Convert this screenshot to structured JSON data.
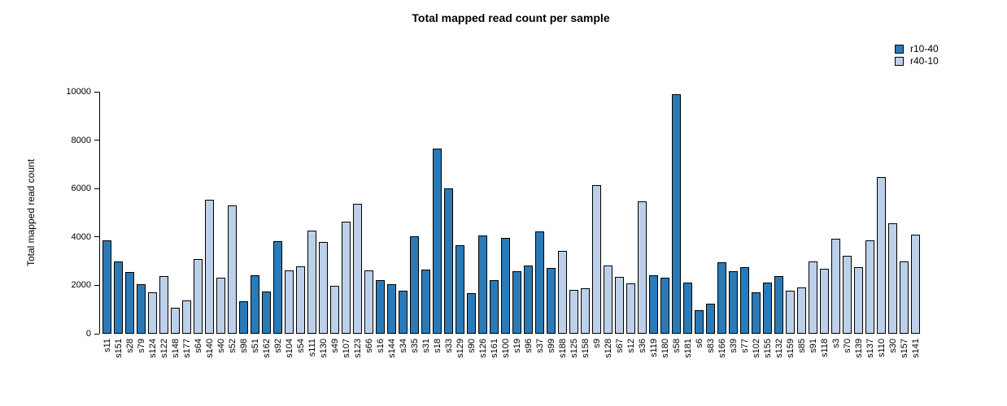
{
  "chart_data": {
    "type": "bar",
    "title": "Total mapped read count per sample",
    "ylabel": "Total mapped read count",
    "xlabel": "",
    "ylim": [
      0,
      10000
    ],
    "yticks": [
      0,
      2000,
      4000,
      6000,
      8000,
      10000
    ],
    "grid": false,
    "legend_position": "top-right",
    "series": [
      {
        "name": "r10-40",
        "color": "#2b7ab8"
      },
      {
        "name": "r40-10",
        "color": "#bcd0ea"
      }
    ],
    "bar_stroke_color": "#000000",
    "categories": [
      "s11",
      "s151",
      "s28",
      "s79",
      "s124",
      "s122",
      "s148",
      "s177",
      "s64",
      "s140",
      "s40",
      "s52",
      "s98",
      "s51",
      "s162",
      "s92",
      "s104",
      "s54",
      "s111",
      "s130",
      "s49",
      "s107",
      "s123",
      "s66",
      "s16",
      "s144",
      "s34",
      "s35",
      "s31",
      "s18",
      "s33",
      "s129",
      "s90",
      "s126",
      "s161",
      "s100",
      "s19",
      "s96",
      "s37",
      "s99",
      "s188",
      "s125",
      "s158",
      "s9",
      "s128",
      "s67",
      "s12",
      "s36",
      "s119",
      "s180",
      "s58",
      "s181",
      "s6",
      "s83",
      "s166",
      "s39",
      "s77",
      "s102",
      "s155",
      "s132",
      "s159",
      "s85",
      "s91",
      "s118",
      "s3",
      "s70",
      "s139",
      "s137",
      "s110",
      "s30",
      "s157",
      "s141"
    ],
    "values": [
      3870,
      2970,
      2550,
      2060,
      1700,
      2370,
      1060,
      1390,
      3090,
      5540,
      2300,
      5290,
      1340,
      2410,
      1740,
      3840,
      2620,
      2790,
      4260,
      3790,
      1980,
      4630,
      5380,
      2610,
      2230,
      2060,
      1790,
      4040,
      2650,
      7640,
      6010,
      3670,
      1680,
      4070,
      2210,
      3950,
      2600,
      2810,
      4240,
      2710,
      3410,
      1800,
      1880,
      6130,
      2830,
      2340,
      2070,
      5460,
      2420,
      2330,
      9890,
      2100,
      960,
      1230,
      2940,
      2570,
      2740,
      1720,
      2120,
      2380,
      1790,
      1910,
      2970,
      2670,
      3910,
      3210,
      2760,
      3870,
      6460,
      4550,
      2990,
      4110
    ],
    "bar_series": [
      "r10-40",
      "r10-40",
      "r10-40",
      "r10-40",
      "r40-10",
      "r40-10",
      "r40-10",
      "r40-10",
      "r40-10",
      "r40-10",
      "r40-10",
      "r40-10",
      "r10-40",
      "r10-40",
      "r10-40",
      "r10-40",
      "r40-10",
      "r40-10",
      "r40-10",
      "r40-10",
      "r40-10",
      "r40-10",
      "r40-10",
      "r40-10",
      "r10-40",
      "r10-40",
      "r10-40",
      "r10-40",
      "r10-40",
      "r10-40",
      "r10-40",
      "r10-40",
      "r10-40",
      "r10-40",
      "r10-40",
      "r10-40",
      "r10-40",
      "r10-40",
      "r10-40",
      "r10-40",
      "r40-10",
      "r40-10",
      "r40-10",
      "r40-10",
      "r40-10",
      "r40-10",
      "r40-10",
      "r40-10",
      "r10-40",
      "r10-40",
      "r10-40",
      "r10-40",
      "r10-40",
      "r10-40",
      "r10-40",
      "r10-40",
      "r10-40",
      "r10-40",
      "r10-40",
      "r10-40",
      "r40-10",
      "r40-10",
      "r40-10",
      "r40-10",
      "r40-10",
      "r40-10",
      "r40-10",
      "r40-10",
      "r40-10",
      "r40-10",
      "r40-10",
      "r40-10"
    ]
  }
}
